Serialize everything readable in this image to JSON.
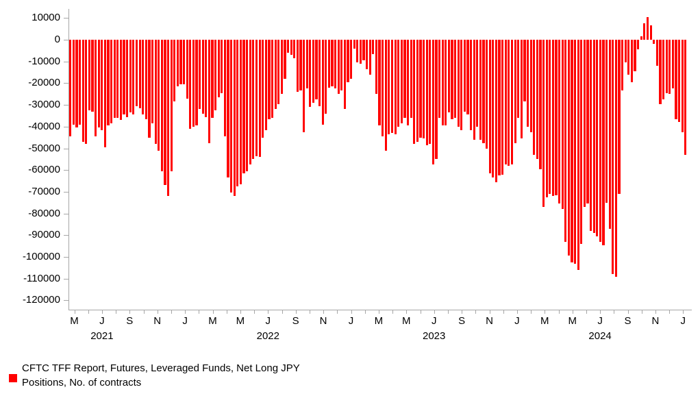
{
  "chart_data": {
    "type": "bar",
    "title": "",
    "frequency": "weekly",
    "bar_color": "#ff0000",
    "axis_color": "#a6a6a6",
    "text_color": "#000000",
    "grid": false,
    "legend_position": "bottom-left",
    "legend_lines": [
      "CFTC TFF Report, Futures, Leveraged Funds, Net Long JPY",
      "Positions, No. of contracts"
    ],
    "ylim": [
      -120000,
      10000
    ],
    "y_ticks": [
      10000,
      0,
      -10000,
      -20000,
      -30000,
      -40000,
      -50000,
      -60000,
      -70000,
      -80000,
      -90000,
      -100000,
      -110000,
      -120000
    ],
    "x_axis": {
      "tick_unit": "month",
      "labels_every": 2,
      "month_labels": [
        "M",
        "J",
        "S",
        "N",
        "J",
        "M",
        "M",
        "J",
        "S",
        "N",
        "J",
        "M",
        "M",
        "J",
        "S",
        "N",
        "J",
        "M",
        "M",
        "J",
        "S",
        "N",
        "J"
      ],
      "year_labels": [
        "2021",
        "2022",
        "2023",
        "2024"
      ]
    },
    "ylabel": "",
    "xlabel": "",
    "values": [
      -44500,
      -39000,
      -40500,
      -39000,
      -47000,
      -48000,
      -32500,
      -33000,
      -44500,
      -40500,
      -41500,
      -49500,
      -39500,
      -38500,
      -36000,
      -36000,
      -37000,
      -34500,
      -35500,
      -33500,
      -34500,
      -30500,
      -31500,
      -34500,
      -36500,
      -45000,
      -38500,
      -48000,
      -51000,
      -60500,
      -67000,
      -72000,
      -60500,
      -28500,
      -21500,
      -20500,
      -20500,
      -27000,
      -41000,
      -40000,
      -39500,
      -32000,
      -34000,
      -35500,
      -47500,
      -36000,
      -32500,
      -26500,
      -24500,
      -44500,
      -63500,
      -70500,
      -72000,
      -67500,
      -66500,
      -61500,
      -60500,
      -57500,
      -55000,
      -53500,
      -54000,
      -45000,
      -41500,
      -36500,
      -36000,
      -32000,
      -29500,
      -25000,
      -18000,
      -6000,
      -7000,
      -8500,
      -24000,
      -23500,
      -42500,
      -22500,
      -31000,
      -29000,
      -27500,
      -30500,
      -39000,
      -34000,
      -22000,
      -21500,
      -22500,
      -25000,
      -23500,
      -32000,
      -19500,
      -18000,
      -4000,
      -10500,
      -11000,
      -9500,
      -13500,
      -16000,
      -6500,
      -25000,
      -39500,
      -44500,
      -51000,
      -43500,
      -43000,
      -43500,
      -40000,
      -38500,
      -36000,
      -39500,
      -36000,
      -48000,
      -47000,
      -45000,
      -45500,
      -48500,
      -48000,
      -57500,
      -55000,
      -36000,
      -39500,
      -39500,
      -33500,
      -36500,
      -36000,
      -40000,
      -41500,
      -33000,
      -34500,
      -41500,
      -46000,
      -40000,
      -46000,
      -47500,
      -50000,
      -61500,
      -63500,
      -65500,
      -62500,
      -62000,
      -57500,
      -58000,
      -57500,
      -47500,
      -36000,
      -45500,
      -28500,
      -40000,
      -42500,
      -53000,
      -55000,
      -59500,
      -77000,
      -72500,
      -71000,
      -72000,
      -71500,
      -75500,
      -78000,
      -93000,
      -99500,
      -102500,
      -103000,
      -106000,
      -94000,
      -77000,
      -75500,
      -88000,
      -89000,
      -90500,
      -93000,
      -94500,
      -75000,
      -87000,
      -108000,
      -109000,
      -71000,
      -23500,
      -10500,
      -16000,
      -19500,
      -14500,
      -4500,
      1500,
      7500,
      10500,
      6500,
      -2000,
      -12000,
      -29500,
      -27500,
      -24500,
      -25000,
      -22500,
      -36500,
      -38000,
      -42500,
      -53000
    ]
  }
}
